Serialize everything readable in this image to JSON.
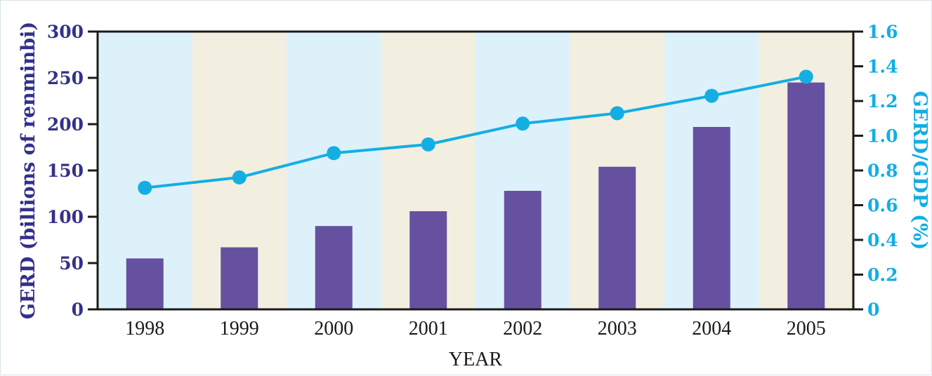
{
  "chart_data": {
    "type": "bar",
    "categories": [
      "1998",
      "1999",
      "2000",
      "2001",
      "2002",
      "2003",
      "2004",
      "2005"
    ],
    "series": [
      {
        "name": "GERD (billions of renminbi)",
        "type": "bar",
        "axis": "left",
        "color": "#6650a0",
        "values": [
          55,
          67,
          90,
          106,
          128,
          154,
          197,
          245
        ]
      },
      {
        "name": "GERD/GDP (%)",
        "type": "line",
        "axis": "right",
        "color": "#14aee3",
        "values": [
          0.7,
          0.76,
          0.9,
          0.95,
          1.07,
          1.13,
          1.23,
          1.34
        ]
      }
    ],
    "xlabel": "YEAR",
    "ylabel_left": "GERD (billions of renminbi)",
    "ylabel_right": "GERD/GDP (%)",
    "ylim_left": [
      0,
      300
    ],
    "ylim_right": [
      0,
      1.6
    ],
    "yticks_left": [
      "0",
      "50",
      "100",
      "150",
      "200",
      "250",
      "300"
    ],
    "yticks_right": [
      "0",
      "0.2",
      "0.4",
      "0.6",
      "0.8",
      "1.0",
      "1.2",
      "1.4",
      "1.6"
    ],
    "band_colors": [
      "#ddf1fb",
      "#f2efe1"
    ],
    "grid": false
  }
}
